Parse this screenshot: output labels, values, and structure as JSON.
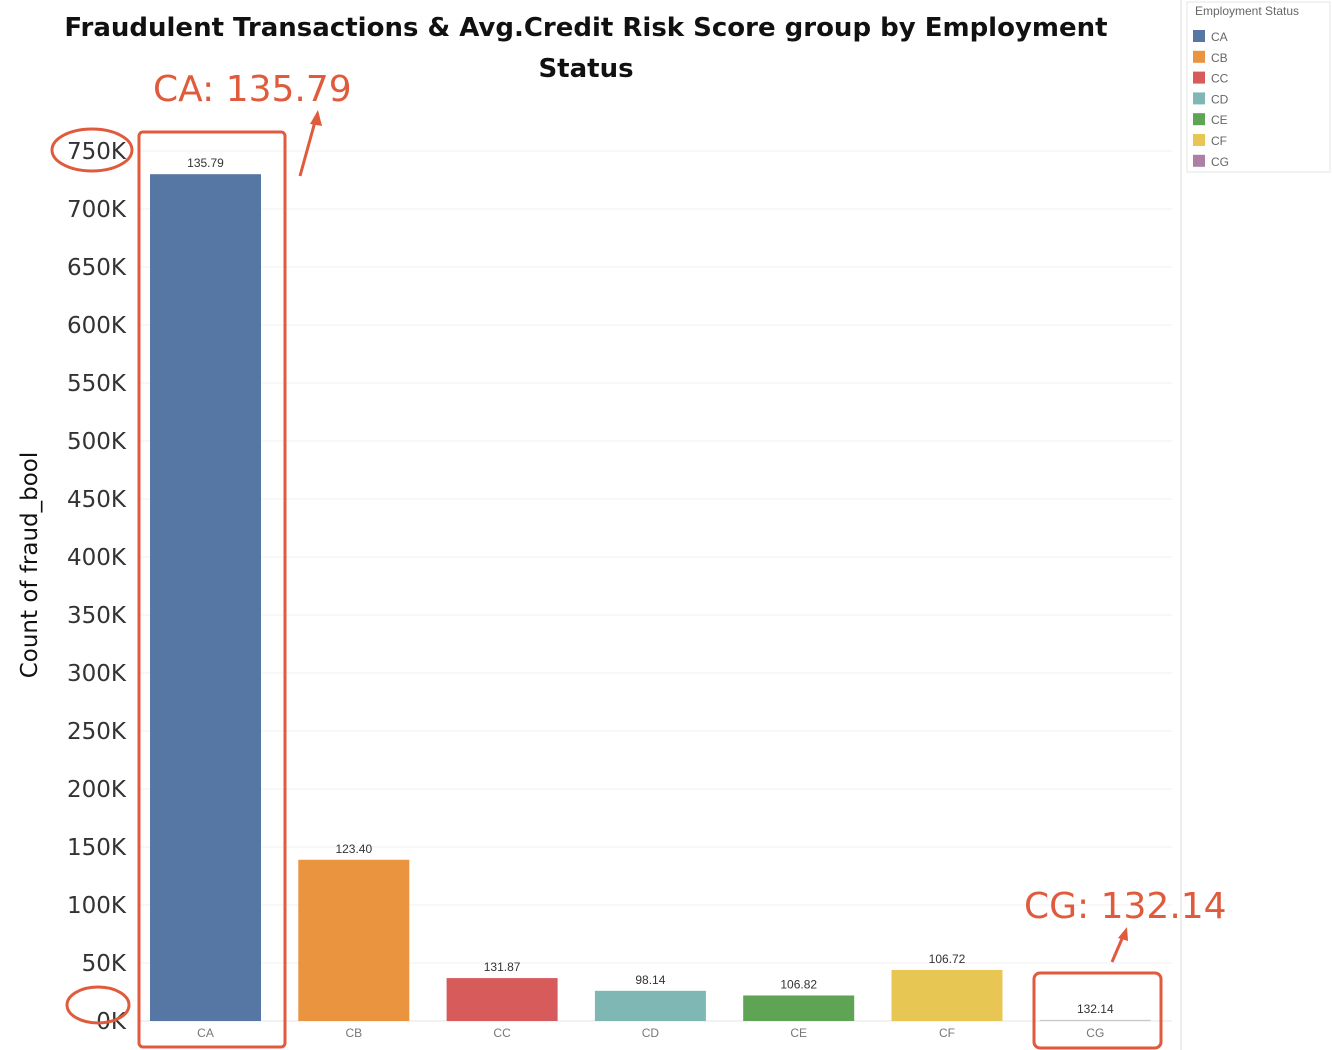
{
  "chart_data": {
    "type": "bar",
    "title_line1": "Fraudulent Transactions & Avg.Credit Risk Score group by Employment",
    "title_line2": "Status",
    "ylabel": "Count of fraud_bool",
    "ylim": [
      0,
      750000
    ],
    "yticks": [
      0,
      50000,
      100000,
      150000,
      200000,
      250000,
      300000,
      350000,
      400000,
      450000,
      500000,
      550000,
      600000,
      650000,
      700000,
      750000
    ],
    "ytick_labels": [
      "0K",
      "50K",
      "100K",
      "150K",
      "200K",
      "250K",
      "300K",
      "350K",
      "400K",
      "450K",
      "500K",
      "550K",
      "600K",
      "650K",
      "700K",
      "750K"
    ],
    "categories": [
      "CA",
      "CB",
      "CC",
      "CD",
      "CE",
      "CF",
      "CG"
    ],
    "values": [
      730000,
      139000,
      37000,
      26000,
      22000,
      44000,
      1000
    ],
    "data_labels": [
      "135.79",
      "123.40",
      "131.87",
      "98.14",
      "106.82",
      "106.72",
      "132.14"
    ],
    "colors": [
      "#5677a3",
      "#ea9440",
      "#d75b5b",
      "#7fb7b4",
      "#5fa354",
      "#e8c654",
      "#ac7fa4"
    ],
    "grid": true,
    "legend": {
      "title": "Employment Status",
      "placement": "top-right",
      "items": [
        "CA",
        "CB",
        "CC",
        "CD",
        "CE",
        "CF",
        "CG"
      ]
    },
    "annotations": [
      {
        "text": "CA: 135.79",
        "target": "CA"
      },
      {
        "text": "CG: 132.14",
        "target": "CG"
      }
    ]
  }
}
